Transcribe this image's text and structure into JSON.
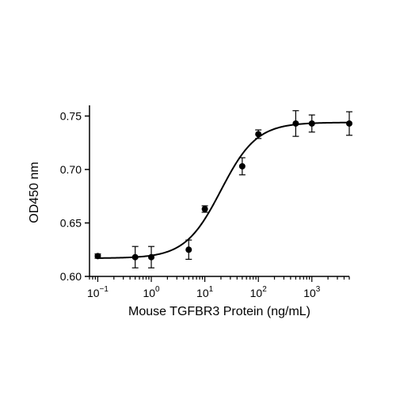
{
  "chart_data": {
    "type": "scatter",
    "title": "",
    "xlabel": "Mouse TGFBR3 Protein (ng/mL)",
    "ylabel": "OD450 nm",
    "x_scale": "log10",
    "xlim": [
      0.07,
      5000
    ],
    "ylim": [
      0.6,
      0.76
    ],
    "x_ticks": [
      {
        "base": "10",
        "exp": "-1",
        "value": 0.1
      },
      {
        "base": "10",
        "exp": "0",
        "value": 1
      },
      {
        "base": "10",
        "exp": "1",
        "value": 10
      },
      {
        "base": "10",
        "exp": "2",
        "value": 100
      },
      {
        "base": "10",
        "exp": "3",
        "value": 1000
      }
    ],
    "y_ticks": [
      {
        "label": "0.60",
        "value": 0.6
      },
      {
        "label": "0.65",
        "value": 0.65
      },
      {
        "label": "0.70",
        "value": 0.7
      },
      {
        "label": "0.75",
        "value": 0.75
      }
    ],
    "grid": false,
    "legend": "none",
    "points": [
      {
        "x": 0.1,
        "y": 0.619,
        "err": 0.002
      },
      {
        "x": 0.5,
        "y": 0.618,
        "err": 0.01
      },
      {
        "x": 1,
        "y": 0.618,
        "err": 0.01
      },
      {
        "x": 5,
        "y": 0.625,
        "err": 0.009
      },
      {
        "x": 10,
        "y": 0.663,
        "err": 0.003
      },
      {
        "x": 50,
        "y": 0.703,
        "err": 0.008
      },
      {
        "x": 100,
        "y": 0.733,
        "err": 0.004
      },
      {
        "x": 500,
        "y": 0.743,
        "err": 0.012
      },
      {
        "x": 1000,
        "y": 0.743,
        "err": 0.008
      },
      {
        "x": 5000,
        "y": 0.743,
        "err": 0.011
      }
    ],
    "fit": {
      "model": "4PL",
      "bottom": 0.617,
      "top": 0.744,
      "ec50": 20,
      "hill": 1.3,
      "x_range": [
        0.1,
        5000
      ]
    },
    "colors": {
      "marker": "#000000",
      "line": "#000000"
    }
  }
}
